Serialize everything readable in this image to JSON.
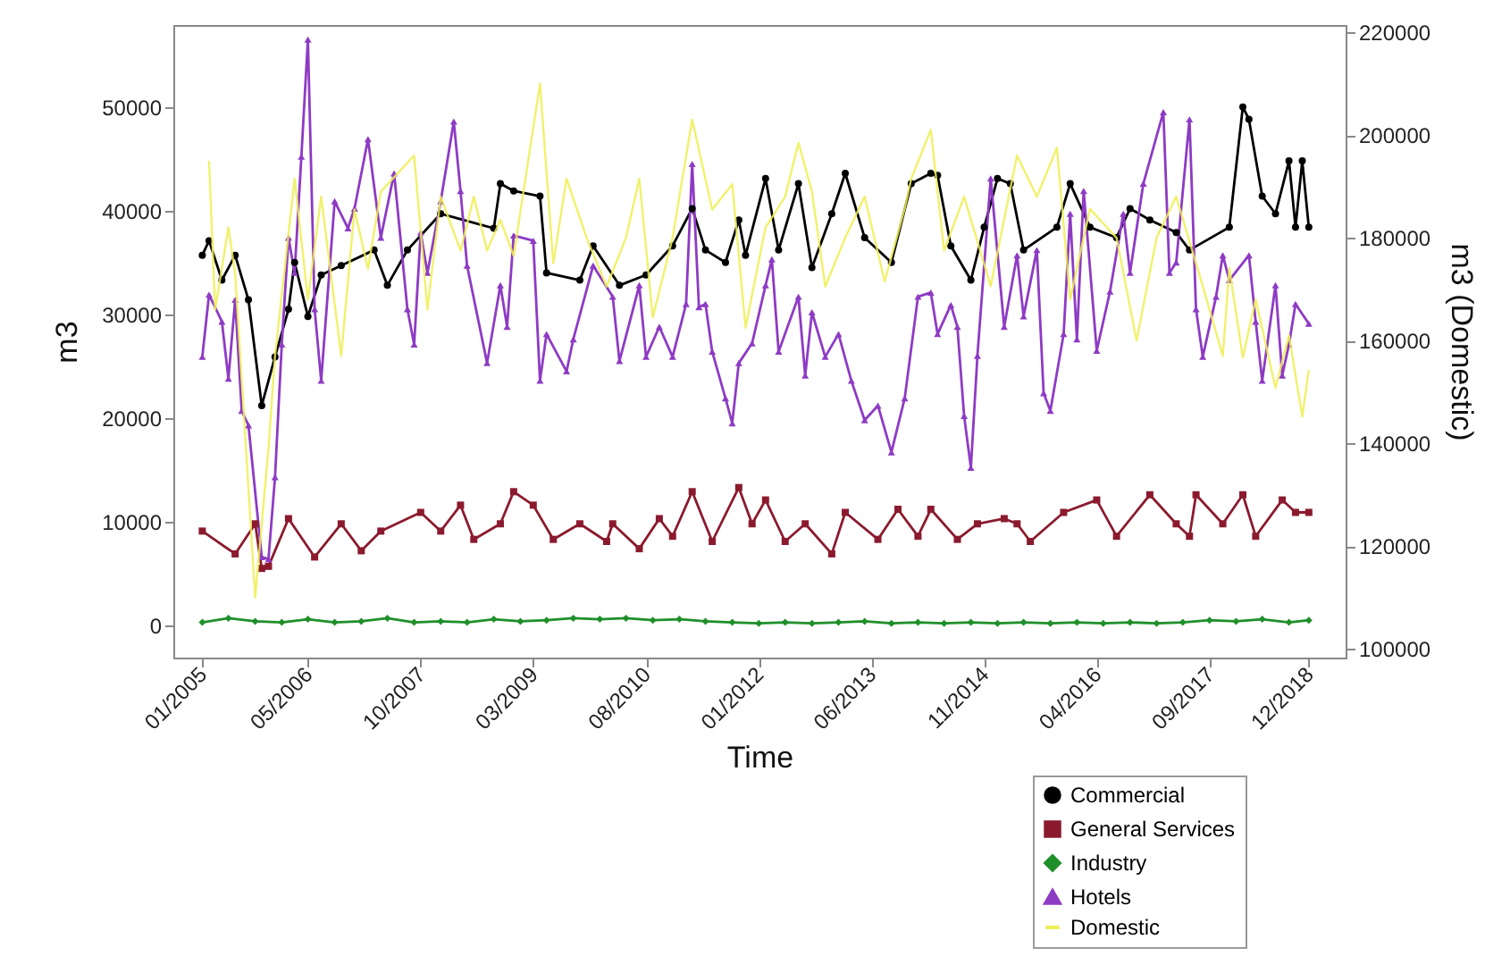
{
  "chart_data": {
    "type": "line",
    "xlabel": "Time",
    "ylabel": "m3",
    "y2label": "m3 (Domestic)",
    "xlim": [
      "2004-08-21",
      "2019-05-19"
    ],
    "xticks": [
      {
        "value": "2005-01",
        "label": "01/2005"
      },
      {
        "value": "2006-05",
        "label": "05/2006"
      },
      {
        "value": "2007-10",
        "label": "10/2007"
      },
      {
        "value": "2009-03",
        "label": "03/2009"
      },
      {
        "value": "2010-08",
        "label": "08/2010"
      },
      {
        "value": "2012-01",
        "label": "01/2012"
      },
      {
        "value": "2013-06",
        "label": "06/2013"
      },
      {
        "value": "2014-11",
        "label": "11/2014"
      },
      {
        "value": "2016-04",
        "label": "04/2016"
      },
      {
        "value": "2017-09",
        "label": "09/2017"
      },
      {
        "value": "2018-12",
        "label": "12/2018"
      }
    ],
    "ylim": [
      -3100,
      57900
    ],
    "yticks": [
      0,
      10000,
      20000,
      30000,
      40000,
      50000
    ],
    "y2lim": [
      98300,
      221400
    ],
    "y2ticks": [
      100000,
      120000,
      140000,
      160000,
      180000,
      200000,
      220000
    ],
    "legend": "bottom right",
    "series": [
      {
        "name": "Commercial",
        "color": "#000000",
        "marker": "circle",
        "x": [
          "2005-01",
          "2005-02",
          "2005-04",
          "2005-06",
          "2005-08",
          "2005-10",
          "2005-12",
          "2006-02",
          "2006-03",
          "2006-05",
          "2006-07",
          "2006-10",
          "2007-03",
          "2007-05",
          "2007-08",
          "2008-01",
          "2008-09",
          "2008-10",
          "2008-12",
          "2009-04",
          "2009-05",
          "2009-10",
          "2009-12",
          "2010-04",
          "2010-08",
          "2010-12",
          "2011-03",
          "2011-05",
          "2011-08",
          "2011-10",
          "2011-11",
          "2012-02",
          "2012-04",
          "2012-07",
          "2012-09",
          "2012-12",
          "2013-02",
          "2013-05",
          "2013-09",
          "2013-12",
          "2014-03",
          "2014-04",
          "2014-06",
          "2014-09",
          "2014-11",
          "2015-01",
          "2015-03",
          "2015-05",
          "2015-10",
          "2015-12",
          "2016-03",
          "2016-07",
          "2016-09",
          "2016-12",
          "2017-04",
          "2017-06",
          "2017-12",
          "2018-02",
          "2018-03",
          "2018-05",
          "2018-07",
          "2018-09",
          "2018-10",
          "2018-11",
          "2018-12"
        ],
        "values": [
          35700,
          37100,
          33300,
          35700,
          31400,
          21200,
          25900,
          30500,
          35000,
          29800,
          33800,
          34700,
          36200,
          32800,
          36200,
          39700,
          38300,
          42600,
          41900,
          41400,
          34000,
          33300,
          36600,
          32800,
          33800,
          36600,
          40200,
          36200,
          35000,
          39100,
          35700,
          43100,
          36200,
          42600,
          34500,
          39700,
          43600,
          37400,
          35000,
          42600,
          43600,
          43400,
          36600,
          33300,
          38400,
          43100,
          42600,
          36200,
          38400,
          42600,
          38400,
          37400,
          40200,
          39100,
          37900,
          36200,
          38400,
          50000,
          48800,
          41400,
          39700,
          44800,
          38400,
          44800,
          38400
        ]
      },
      {
        "name": "General Services",
        "color": "#8b1a2e",
        "marker": "square",
        "x": [
          "2005-01",
          "2005-06",
          "2005-09",
          "2005-10",
          "2005-11",
          "2006-02",
          "2006-06",
          "2006-10",
          "2007-01",
          "2007-04",
          "2007-10",
          "2008-01",
          "2008-04",
          "2008-06",
          "2008-10",
          "2008-12",
          "2009-03",
          "2009-06",
          "2009-10",
          "2010-02",
          "2010-03",
          "2010-07",
          "2010-10",
          "2010-12",
          "2011-03",
          "2011-06",
          "2011-10",
          "2011-12",
          "2012-02",
          "2012-05",
          "2012-08",
          "2012-12",
          "2013-02",
          "2013-07",
          "2013-10",
          "2014-01",
          "2014-03",
          "2014-07",
          "2014-10",
          "2015-02",
          "2015-04",
          "2015-06",
          "2015-11",
          "2016-04",
          "2016-07",
          "2016-12",
          "2017-04",
          "2017-06",
          "2017-07",
          "2017-11",
          "2018-02",
          "2018-04",
          "2018-08",
          "2018-10",
          "2018-12"
        ],
        "values": [
          9100,
          6900,
          9800,
          5500,
          5700,
          10300,
          6600,
          9800,
          7200,
          9100,
          10900,
          9100,
          11600,
          8300,
          9800,
          12900,
          11600,
          8300,
          9800,
          8100,
          9800,
          7400,
          10300,
          8600,
          12900,
          8100,
          13300,
          9800,
          12100,
          8100,
          9800,
          6900,
          10900,
          8300,
          11200,
          8600,
          11200,
          8300,
          9800,
          10300,
          9800,
          8100,
          10900,
          12100,
          8600,
          12600,
          9800,
          8600,
          12600,
          9800,
          12600,
          8600,
          12100,
          10900,
          10900
        ]
      },
      {
        "name": "Industry",
        "color": "#1f8f2a",
        "marker": "diamond",
        "x": [
          "2005-01",
          "2005-05",
          "2005-09",
          "2006-01",
          "2006-05",
          "2006-09",
          "2007-01",
          "2007-05",
          "2007-09",
          "2008-01",
          "2008-05",
          "2008-09",
          "2009-01",
          "2009-05",
          "2009-09",
          "2010-01",
          "2010-05",
          "2010-09",
          "2011-01",
          "2011-05",
          "2011-09",
          "2012-01",
          "2012-05",
          "2012-09",
          "2013-01",
          "2013-05",
          "2013-09",
          "2014-01",
          "2014-05",
          "2014-09",
          "2015-01",
          "2015-05",
          "2015-09",
          "2016-01",
          "2016-05",
          "2016-09",
          "2017-01",
          "2017-05",
          "2017-09",
          "2018-01",
          "2018-05",
          "2018-09",
          "2018-12"
        ],
        "values": [
          300,
          700,
          400,
          300,
          600,
          300,
          400,
          700,
          300,
          400,
          300,
          600,
          400,
          500,
          700,
          600,
          700,
          500,
          600,
          400,
          300,
          200,
          300,
          200,
          300,
          400,
          200,
          300,
          200,
          300,
          200,
          300,
          200,
          300,
          200,
          300,
          200,
          300,
          500,
          400,
          600,
          300,
          500
        ]
      },
      {
        "name": "Hotels",
        "color": "#8e3bc4",
        "marker": "triangle",
        "x": [
          "2005-01",
          "2005-02",
          "2005-04",
          "2005-05",
          "2005-06",
          "2005-07",
          "2005-08",
          "2005-10",
          "2005-11",
          "2005-12",
          "2006-01",
          "2006-02",
          "2006-03",
          "2006-04",
          "2006-05",
          "2006-06",
          "2006-07",
          "2006-09",
          "2006-11",
          "2006-12",
          "2007-02",
          "2007-04",
          "2007-06",
          "2007-08",
          "2007-09",
          "2007-10",
          "2007-11",
          "2008-01",
          "2008-03",
          "2008-04",
          "2008-05",
          "2008-08",
          "2008-10",
          "2008-11",
          "2008-12",
          "2009-03",
          "2009-04",
          "2009-05",
          "2009-08",
          "2009-09",
          "2009-12",
          "2010-03",
          "2010-04",
          "2010-07",
          "2010-08",
          "2010-10",
          "2010-12",
          "2011-02",
          "2011-03",
          "2011-04",
          "2011-05",
          "2011-06",
          "2011-08",
          "2011-09",
          "2011-10",
          "2011-12",
          "2012-02",
          "2012-03",
          "2012-04",
          "2012-07",
          "2012-08",
          "2012-09",
          "2012-11",
          "2013-01",
          "2013-03",
          "2013-05",
          "2013-07",
          "2013-09",
          "2013-11",
          "2014-01",
          "2014-03",
          "2014-04",
          "2014-06",
          "2014-07",
          "2014-08",
          "2014-09",
          "2014-10",
          "2014-12",
          "2015-02",
          "2015-04",
          "2015-05",
          "2015-07",
          "2015-08",
          "2015-09",
          "2015-11",
          "2015-12",
          "2016-01",
          "2016-02",
          "2016-04",
          "2016-06",
          "2016-08",
          "2016-09",
          "2016-11",
          "2017-02",
          "2017-03",
          "2017-04",
          "2017-06",
          "2017-07",
          "2017-08",
          "2017-10",
          "2017-11",
          "2017-12",
          "2018-03",
          "2018-04",
          "2018-05",
          "2018-07",
          "2018-08",
          "2018-09",
          "2018-10",
          "2018-12"
        ],
        "values": [
          25900,
          31900,
          29300,
          23800,
          31400,
          20700,
          19300,
          6600,
          6400,
          14300,
          27100,
          37400,
          34000,
          45200,
          56500,
          30500,
          23600,
          40900,
          38300,
          40200,
          46900,
          37400,
          43600,
          30500,
          27100,
          37900,
          34000,
          40900,
          48600,
          41900,
          34700,
          25300,
          32800,
          28800,
          37600,
          37100,
          23600,
          28100,
          24500,
          27600,
          34700,
          31700,
          25500,
          32800,
          25900,
          28800,
          25900,
          31000,
          44500,
          30700,
          31000,
          26400,
          21900,
          19500,
          25300,
          27200,
          32800,
          35300,
          26400,
          31700,
          24100,
          30200,
          25900,
          28100,
          23600,
          19800,
          21200,
          16700,
          21900,
          31700,
          32100,
          28100,
          30900,
          28800,
          20200,
          15200,
          26000,
          43100,
          28800,
          35700,
          29800,
          36200,
          22400,
          20700,
          28100,
          39700,
          27600,
          41900,
          26500,
          32200,
          39700,
          34000,
          42600,
          49500,
          34000,
          35000,
          48800,
          30500,
          25900,
          31700,
          35700,
          33300,
          35700,
          29300,
          23600,
          32800,
          24100,
          27100,
          31000,
          29100
        ]
      },
      {
        "name": "Domestic",
        "color": "#eeee55",
        "marker": "none",
        "axis": "y2",
        "x": [
          "2005-02",
          "2005-03",
          "2005-05",
          "2005-06",
          "2005-09",
          "2005-11",
          "2005-12",
          "2006-03",
          "2006-05",
          "2006-07",
          "2006-10",
          "2006-12",
          "2007-02",
          "2007-04",
          "2007-09",
          "2007-11",
          "2008-01",
          "2008-04",
          "2008-06",
          "2008-08",
          "2008-10",
          "2008-12",
          "2009-04",
          "2009-06",
          "2009-08",
          "2009-11",
          "2010-02",
          "2010-05",
          "2010-07",
          "2010-09",
          "2010-12",
          "2011-03",
          "2011-06",
          "2011-09",
          "2011-11",
          "2012-02",
          "2012-05",
          "2012-07",
          "2012-09",
          "2012-11",
          "2013-02",
          "2013-05",
          "2013-08",
          "2013-11",
          "2013-12",
          "2014-03",
          "2014-05",
          "2014-08",
          "2014-12",
          "2015-04",
          "2015-07",
          "2015-10",
          "2015-12",
          "2016-03",
          "2016-07",
          "2016-10",
          "2017-01",
          "2017-04",
          "2017-08",
          "2017-11",
          "2017-12",
          "2018-02",
          "2018-04",
          "2018-07",
          "2018-09",
          "2018-11",
          "2018-12"
        ],
        "values": [
          195000,
          166000,
          182000,
          173000,
          110000,
          139000,
          157000,
          191500,
          168000,
          188000,
          157000,
          185500,
          174000,
          189000,
          196000,
          166000,
          188000,
          177500,
          188000,
          177500,
          183500,
          176500,
          210000,
          175000,
          191500,
          180000,
          170500,
          180000,
          191500,
          164500,
          180000,
          203000,
          185500,
          190400,
          162500,
          182000,
          188000,
          198500,
          189000,
          170500,
          180000,
          188000,
          171500,
          185600,
          191500,
          201000,
          177500,
          188000,
          170600,
          196000,
          188000,
          197500,
          168000,
          185600,
          180000,
          160000,
          180000,
          188000,
          170600,
          157000,
          174100,
          156700,
          168000,
          150800,
          161000,
          145200,
          154300
        ]
      }
    ]
  }
}
